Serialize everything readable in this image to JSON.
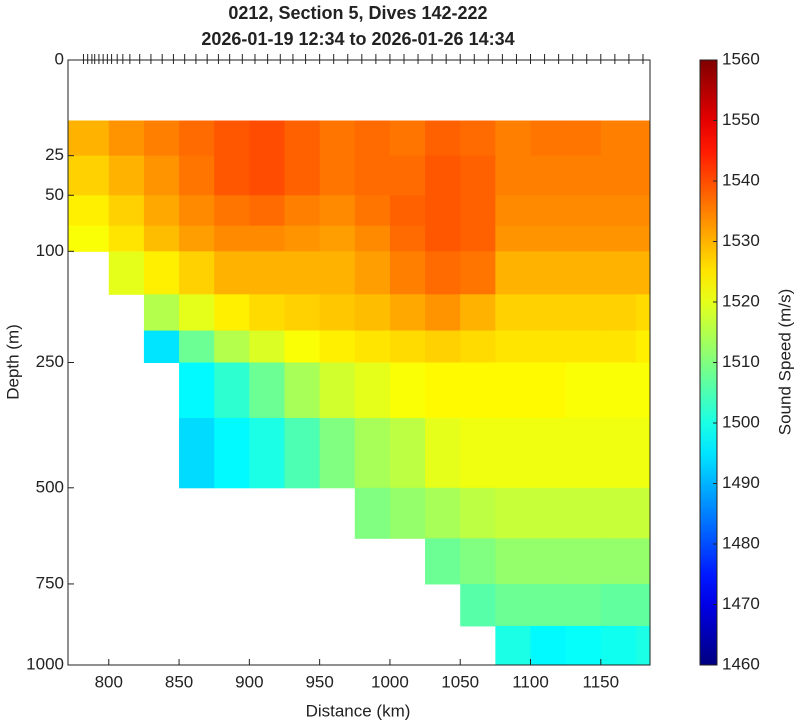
{
  "chart_data": {
    "type": "heatmap",
    "title": "0212, Section 5, Dives 142-222",
    "subtitle": "2026-01-19 12:34 to 2026-01-26 14:34",
    "x_label": "Distance (km)",
    "y_label": "Depth (m)",
    "colorbar_label": "Sound Speed (m/s)",
    "colormap": "jet",
    "yscale": "sqrt",
    "y_reversed": true,
    "xlim": [
      771,
      1185
    ],
    "ylim": [
      0,
      1000
    ],
    "xticks": [
      800,
      850,
      900,
      950,
      1000,
      1050,
      1100,
      1150
    ],
    "yticks": [
      0,
      25,
      50,
      100,
      250,
      500,
      750,
      1000
    ],
    "clim": [
      1460,
      1560
    ],
    "cticks": [
      1460,
      1470,
      1480,
      1490,
      1500,
      1510,
      1520,
      1530,
      1540,
      1550,
      1560
    ],
    "dive_distances": [
      782,
      785,
      788,
      790,
      793,
      796,
      799,
      802,
      806,
      810,
      815,
      822,
      830,
      838,
      846,
      854,
      862,
      870,
      878,
      886,
      895,
      904,
      913,
      922,
      931,
      940,
      950,
      960,
      970,
      980,
      990,
      1000,
      1010,
      1020,
      1030,
      1040,
      1050,
      1060,
      1070,
      1080,
      1090,
      1100,
      1110,
      1120,
      1130,
      1140,
      1150,
      1160,
      1170,
      1180
    ],
    "distance_edges": [
      771,
      800,
      825,
      850,
      875,
      900,
      925,
      950,
      975,
      1000,
      1025,
      1050,
      1075,
      1100,
      1125,
      1150,
      1175,
      1185
    ],
    "depth_edges": [
      10,
      25,
      50,
      75,
      100,
      150,
      200,
      250,
      350,
      500,
      625,
      750,
      875,
      1000
    ],
    "values": [
      [
        1530,
        1533,
        1535,
        1537,
        1539,
        1540,
        1538,
        1536,
        1537,
        1536,
        1538,
        1537,
        1535,
        1536,
        1536,
        1535,
        1535
      ],
      [
        1527,
        1530,
        1533,
        1536,
        1539,
        1540,
        1538,
        1536,
        1537,
        1537,
        1539,
        1538,
        1535,
        1535,
        1535,
        1535,
        1535
      ],
      [
        1524,
        1527,
        1531,
        1534,
        1536,
        1537,
        1535,
        1534,
        1536,
        1538,
        1539,
        1538,
        1534,
        1534,
        1534,
        1534,
        1534
      ],
      [
        1522,
        1525,
        1529,
        1532,
        1534,
        1534,
        1533,
        1532,
        1534,
        1537,
        1539,
        1538,
        1533,
        1533,
        1533,
        1533,
        1533
      ],
      [
        null,
        1520,
        1524,
        1527,
        1530,
        1530,
        1530,
        1530,
        1532,
        1535,
        1537,
        1536,
        1530,
        1530,
        1530,
        1530,
        1530
      ],
      [
        null,
        null,
        1515,
        1520,
        1524,
        1526,
        1527,
        1528,
        1529,
        1531,
        1533,
        1530,
        1527,
        1527,
        1527,
        1527,
        1526
      ],
      [
        null,
        null,
        1495,
        1508,
        1515,
        1519,
        1522,
        1524,
        1525,
        1526,
        1527,
        1526,
        1525,
        1525,
        1525,
        1525,
        1524
      ],
      [
        null,
        null,
        null,
        1497,
        1502,
        1508,
        1514,
        1518,
        1520,
        1522,
        1523,
        1523,
        1523,
        1523,
        1522,
        1522,
        1522
      ],
      [
        null,
        null,
        null,
        1494,
        1497,
        1500,
        1505,
        1510,
        1514,
        1516,
        1520,
        1521,
        1521,
        1521,
        1521,
        1521,
        1521
      ],
      [
        null,
        null,
        null,
        null,
        null,
        null,
        null,
        null,
        1510,
        1512,
        1514,
        1516,
        1517,
        1517,
        1517,
        1517,
        1517
      ],
      [
        null,
        null,
        null,
        null,
        null,
        null,
        null,
        null,
        null,
        null,
        1508,
        1510,
        1512,
        1512,
        1512,
        1512,
        1512
      ],
      [
        null,
        null,
        null,
        null,
        null,
        null,
        null,
        null,
        null,
        null,
        null,
        1506,
        1508,
        1508,
        1508,
        1507,
        1507
      ],
      [
        null,
        null,
        null,
        null,
        null,
        null,
        null,
        null,
        null,
        null,
        null,
        null,
        1500,
        1497,
        1498,
        1499,
        1500
      ]
    ]
  }
}
